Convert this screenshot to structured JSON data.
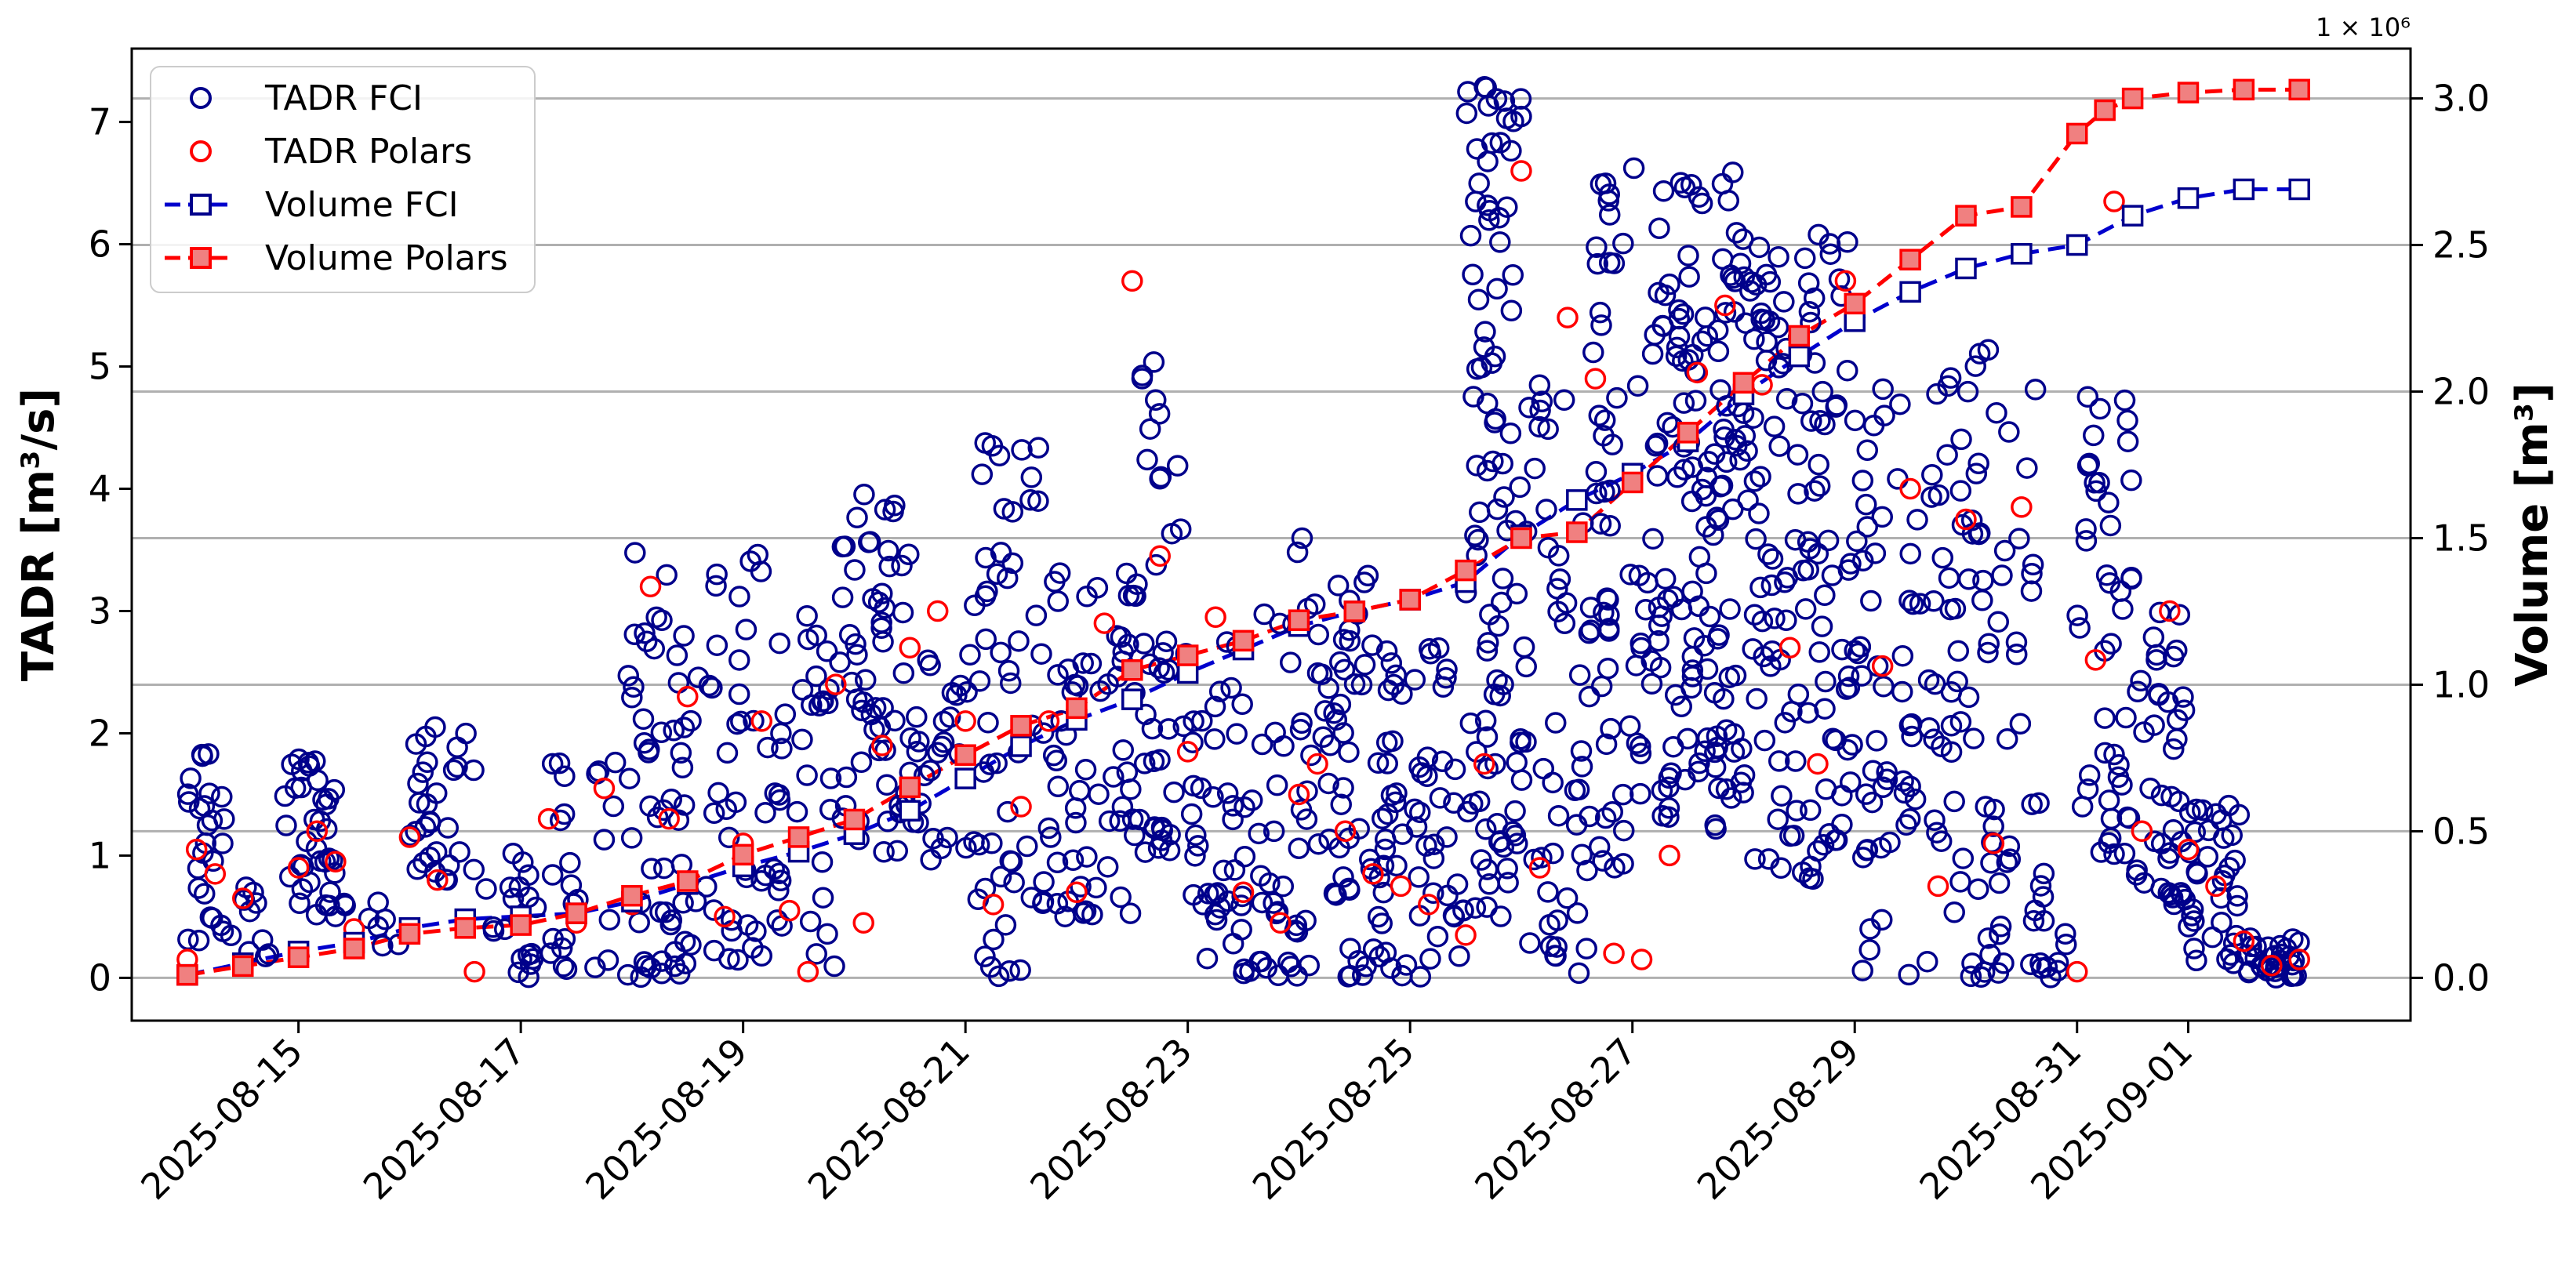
{
  "chart_data": {
    "type": "scatter",
    "xlabel": "",
    "y_left_label": "TADR [m³/s]",
    "y_right_label": "Volume [m³]",
    "y_right_offset_label": "1 × 10⁶",
    "x_range": [
      "2025-08-13T12:00",
      "2025-09-03T00:00"
    ],
    "y_left_range": [
      -0.35,
      7.6
    ],
    "y_right_range": [
      -0.146,
      3.17
    ],
    "x_ticks": [
      "2025-08-15",
      "2025-08-17",
      "2025-08-19",
      "2025-08-21",
      "2025-08-23",
      "2025-08-25",
      "2025-08-27",
      "2025-08-29",
      "2025-08-31",
      "2025-09-01"
    ],
    "y_left_ticks": [
      "0",
      "1",
      "2",
      "3",
      "4",
      "5",
      "6",
      "7"
    ],
    "y_right_ticks": [
      "0.0",
      "0.5",
      "1.0",
      "1.5",
      "2.0",
      "2.5",
      "3.0"
    ],
    "grid": "horizontal lines at right-axis ticks",
    "legend_position": "top-left",
    "legend": [
      "TADR FCI",
      "TADR Polars",
      "Volume FCI",
      "Volume Polars"
    ],
    "colors": {
      "fci": "#00008b",
      "polars": "#ff0000",
      "polars_fill": "#f08080",
      "grid": "#b0b0b0"
    },
    "volume_fci": {
      "x": [
        "2025-08-14T00:00",
        "2025-08-14T12:00",
        "2025-08-15T00:00",
        "2025-08-15T12:00",
        "2025-08-16T00:00",
        "2025-08-16T12:00",
        "2025-08-17T00:00",
        "2025-08-17T12:00",
        "2025-08-18T00:00",
        "2025-08-18T12:00",
        "2025-08-19T00:00",
        "2025-08-19T12:00",
        "2025-08-20T00:00",
        "2025-08-20T12:00",
        "2025-08-21T00:00",
        "2025-08-21T12:00",
        "2025-08-22T00:00",
        "2025-08-22T12:00",
        "2025-08-23T00:00",
        "2025-08-23T12:00",
        "2025-08-24T00:00",
        "2025-08-24T12:00",
        "2025-08-25T00:00",
        "2025-08-25T12:00",
        "2025-08-26T00:00",
        "2025-08-26T12:00",
        "2025-08-27T00:00",
        "2025-08-27T12:00",
        "2025-08-28T00:00",
        "2025-08-28T12:00",
        "2025-08-29T00:00",
        "2025-08-29T12:00",
        "2025-08-30T00:00",
        "2025-08-30T12:00",
        "2025-08-31T00:00",
        "2025-08-31T12:00",
        "2025-09-01T00:00",
        "2025-09-01T12:00",
        "2025-09-02T00:00"
      ],
      "y": [
        0.01,
        0.05,
        0.09,
        0.12,
        0.17,
        0.2,
        0.21,
        0.22,
        0.26,
        0.32,
        0.38,
        0.43,
        0.49,
        0.57,
        0.68,
        0.79,
        0.88,
        0.95,
        1.04,
        1.12,
        1.2,
        1.25,
        1.29,
        1.35,
        1.51,
        1.63,
        1.72,
        1.83,
        1.99,
        2.12,
        2.24,
        2.34,
        2.42,
        2.47,
        2.5,
        2.6,
        2.66,
        2.69,
        2.69
      ]
    },
    "volume_polars": {
      "x": [
        "2025-08-14T00:00",
        "2025-08-14T12:00",
        "2025-08-15T00:00",
        "2025-08-15T12:00",
        "2025-08-16T00:00",
        "2025-08-16T12:00",
        "2025-08-17T00:00",
        "2025-08-17T12:00",
        "2025-08-18T00:00",
        "2025-08-18T12:00",
        "2025-08-19T00:00",
        "2025-08-19T12:00",
        "2025-08-20T00:00",
        "2025-08-20T12:00",
        "2025-08-21T00:00",
        "2025-08-21T12:00",
        "2025-08-22T00:00",
        "2025-08-22T12:00",
        "2025-08-23T00:00",
        "2025-08-23T12:00",
        "2025-08-24T00:00",
        "2025-08-24T12:00",
        "2025-08-25T00:00",
        "2025-08-25T12:00",
        "2025-08-26T00:00",
        "2025-08-26T12:00",
        "2025-08-27T00:00",
        "2025-08-27T12:00",
        "2025-08-28T00:00",
        "2025-08-28T12:00",
        "2025-08-29T00:00",
        "2025-08-29T12:00",
        "2025-08-30T00:00",
        "2025-08-30T12:00",
        "2025-08-31T00:00",
        "2025-08-31T06:00",
        "2025-08-31T12:00",
        "2025-09-01T00:00",
        "2025-09-01T12:00",
        "2025-09-02T00:00"
      ],
      "y": [
        0.01,
        0.04,
        0.07,
        0.1,
        0.15,
        0.17,
        0.18,
        0.22,
        0.28,
        0.33,
        0.42,
        0.48,
        0.54,
        0.65,
        0.76,
        0.86,
        0.92,
        1.05,
        1.1,
        1.15,
        1.22,
        1.25,
        1.29,
        1.39,
        1.5,
        1.52,
        1.69,
        1.86,
        2.03,
        2.19,
        2.3,
        2.45,
        2.6,
        2.63,
        2.88,
        2.96,
        3.0,
        3.02,
        3.03,
        3.03
      ]
    },
    "tadr_fci_segments": [
      {
        "x0": "2025-08-14T00:00",
        "x1": "2025-08-14T08:00",
        "lo": 0.3,
        "hi": 1.9,
        "n": 26
      },
      {
        "x0": "2025-08-14T08:00",
        "x1": "2025-08-14T20:00",
        "lo": 0.1,
        "hi": 0.8,
        "n": 10
      },
      {
        "x0": "2025-08-14T20:00",
        "x1": "2025-08-15T08:00",
        "lo": 0.5,
        "hi": 1.9,
        "n": 36
      },
      {
        "x0": "2025-08-15T08:00",
        "x1": "2025-08-16T00:00",
        "lo": 0.2,
        "hi": 0.9,
        "n": 8
      },
      {
        "x0": "2025-08-16T00:00",
        "x1": "2025-08-16T14:00",
        "lo": 0.8,
        "hi": 2.1,
        "n": 30
      },
      {
        "x0": "2025-08-16T14:00",
        "x1": "2025-08-17T04:00",
        "lo": 0.0,
        "hi": 1.4,
        "n": 20
      },
      {
        "x0": "2025-08-17T04:00",
        "x1": "2025-08-17T20:00",
        "lo": 0.0,
        "hi": 2.0,
        "n": 22
      },
      {
        "x0": "2025-08-17T20:00",
        "x1": "2025-08-18T12:00",
        "lo": 0.0,
        "hi": 3.5,
        "n": 55
      },
      {
        "x0": "2025-08-18T12:00",
        "x1": "2025-08-19T08:00",
        "lo": 0.1,
        "hi": 3.5,
        "n": 50
      },
      {
        "x0": "2025-08-19T08:00",
        "x1": "2025-08-19T20:00",
        "lo": 0.0,
        "hi": 3.0,
        "n": 28
      },
      {
        "x0": "2025-08-19T20:00",
        "x1": "2025-08-20T12:00",
        "lo": 1.0,
        "hi": 4.0,
        "n": 55
      },
      {
        "x0": "2025-08-20T12:00",
        "x1": "2025-08-21T00:00",
        "lo": 0.9,
        "hi": 2.6,
        "n": 25
      },
      {
        "x0": "2025-08-21T00:00",
        "x1": "2025-08-21T16:00",
        "lo": 0.0,
        "hi": 4.4,
        "n": 55
      },
      {
        "x0": "2025-08-21T16:00",
        "x1": "2025-08-22T12:00",
        "lo": 0.5,
        "hi": 3.4,
        "n": 60
      },
      {
        "x0": "2025-08-22T12:00",
        "x1": "2025-08-23T00:00",
        "lo": 1.0,
        "hi": 5.1,
        "n": 45
      },
      {
        "x0": "2025-08-23T00:00",
        "x1": "2025-08-23T20:00",
        "lo": 0.0,
        "hi": 3.0,
        "n": 60
      },
      {
        "x0": "2025-08-23T20:00",
        "x1": "2025-08-24T16:00",
        "lo": 0.0,
        "hi": 3.6,
        "n": 70
      },
      {
        "x0": "2025-08-24T16:00",
        "x1": "2025-08-25T12:00",
        "lo": 0.0,
        "hi": 2.7,
        "n": 65
      },
      {
        "x0": "2025-08-25T12:00",
        "x1": "2025-08-26T00:00",
        "lo": 0.5,
        "hi": 7.3,
        "n": 95
      },
      {
        "x0": "2025-08-26T00:00",
        "x1": "2025-08-26T16:00",
        "lo": 0.0,
        "hi": 5.2,
        "n": 55
      },
      {
        "x0": "2025-08-26T16:00",
        "x1": "2025-08-27T04:00",
        "lo": 0.9,
        "hi": 6.7,
        "n": 55
      },
      {
        "x0": "2025-08-27T04:00",
        "x1": "2025-08-28T00:00",
        "lo": 1.2,
        "hi": 6.7,
        "n": 140
      },
      {
        "x0": "2025-08-28T00:00",
        "x1": "2025-08-29T00:00",
        "lo": 0.8,
        "hi": 6.1,
        "n": 130
      },
      {
        "x0": "2025-08-29T00:00",
        "x1": "2025-08-29T20:00",
        "lo": 0.0,
        "hi": 5.0,
        "n": 70
      },
      {
        "x0": "2025-08-29T20:00",
        "x1": "2025-08-30T16:00",
        "lo": 0.0,
        "hi": 5.2,
        "n": 75
      },
      {
        "x0": "2025-08-30T16:00",
        "x1": "2025-08-31T00:00",
        "lo": 0.0,
        "hi": 0.9,
        "n": 12
      },
      {
        "x0": "2025-08-31T00:00",
        "x1": "2025-08-31T12:00",
        "lo": 1.0,
        "hi": 4.8,
        "n": 45
      },
      {
        "x0": "2025-08-31T12:00",
        "x1": "2025-09-01T00:00",
        "lo": 0.6,
        "hi": 3.2,
        "n": 40
      },
      {
        "x0": "2025-09-01T00:00",
        "x1": "2025-09-01T12:00",
        "lo": 0.1,
        "hi": 1.5,
        "n": 35
      },
      {
        "x0": "2025-09-01T12:00",
        "x1": "2025-09-02T00:00",
        "lo": 0.0,
        "hi": 0.35,
        "n": 30
      }
    ],
    "tadr_polars": {
      "x": [
        "2025-08-14T00:00",
        "2025-08-14T02:00",
        "2025-08-14T06:00",
        "2025-08-14T12:00",
        "2025-08-15T00:00",
        "2025-08-15T04:00",
        "2025-08-15T08:00",
        "2025-08-15T12:00",
        "2025-08-16T00:00",
        "2025-08-16T06:00",
        "2025-08-16T14:00",
        "2025-08-17T06:00",
        "2025-08-17T12:00",
        "2025-08-17T18:00",
        "2025-08-18T00:00",
        "2025-08-18T04:00",
        "2025-08-18T08:00",
        "2025-08-18T12:00",
        "2025-08-18T20:00",
        "2025-08-19T00:00",
        "2025-08-19T04:00",
        "2025-08-19T10:00",
        "2025-08-19T14:00",
        "2025-08-19T20:00",
        "2025-08-20T02:00",
        "2025-08-20T06:00",
        "2025-08-20T12:00",
        "2025-08-20T18:00",
        "2025-08-21T00:00",
        "2025-08-21T06:00",
        "2025-08-21T12:00",
        "2025-08-21T18:00",
        "2025-08-22T00:00",
        "2025-08-22T06:00",
        "2025-08-22T12:00",
        "2025-08-22T18:00",
        "2025-08-23T00:00",
        "2025-08-23T06:00",
        "2025-08-23T12:00",
        "2025-08-23T20:00",
        "2025-08-24T00:00",
        "2025-08-24T04:00",
        "2025-08-24T10:00",
        "2025-08-24T16:00",
        "2025-08-24T22:00",
        "2025-08-25T04:00",
        "2025-08-25T12:00",
        "2025-08-25T16:00",
        "2025-08-26T00:00",
        "2025-08-26T04:00",
        "2025-08-26T10:00",
        "2025-08-26T16:00",
        "2025-08-26T20:00",
        "2025-08-27T02:00",
        "2025-08-27T08:00",
        "2025-08-27T14:00",
        "2025-08-27T20:00",
        "2025-08-28T04:00",
        "2025-08-28T10:00",
        "2025-08-28T16:00",
        "2025-08-28T22:00",
        "2025-08-29T06:00",
        "2025-08-29T12:00",
        "2025-08-29T18:00",
        "2025-08-30T00:00",
        "2025-08-30T06:00",
        "2025-08-30T12:00",
        "2025-08-31T00:00",
        "2025-08-31T04:00",
        "2025-08-31T08:00",
        "2025-08-31T14:00",
        "2025-08-31T20:00",
        "2025-09-01T00:00",
        "2025-09-01T06:00",
        "2025-09-01T12:00",
        "2025-09-01T18:00",
        "2025-09-02T00:00"
      ],
      "y": [
        0.15,
        1.05,
        0.85,
        0.65,
        0.9,
        1.2,
        0.95,
        0.4,
        1.15,
        0.8,
        0.05,
        1.3,
        0.45,
        1.55,
        0.6,
        3.2,
        1.3,
        2.3,
        0.5,
        1.1,
        2.1,
        0.55,
        0.05,
        2.4,
        0.45,
        1.9,
        2.7,
        3.0,
        2.1,
        0.6,
        1.4,
        2.1,
        0.7,
        2.9,
        5.7,
        3.45,
        1.85,
        2.95,
        0.7,
        0.45,
        1.5,
        1.75,
        1.2,
        0.85,
        0.75,
        0.6,
        0.35,
        1.75,
        6.6,
        0.9,
        5.4,
        4.9,
        0.2,
        0.15,
        1.0,
        4.95,
        5.5,
        4.85,
        2.7,
        1.75,
        5.7,
        2.55,
        4.0,
        0.75,
        3.75,
        1.1,
        3.85,
        0.05,
        2.6,
        6.35,
        1.2,
        3.0,
        1.05,
        0.75,
        0.3,
        0.1,
        0.15
      ]
    }
  }
}
